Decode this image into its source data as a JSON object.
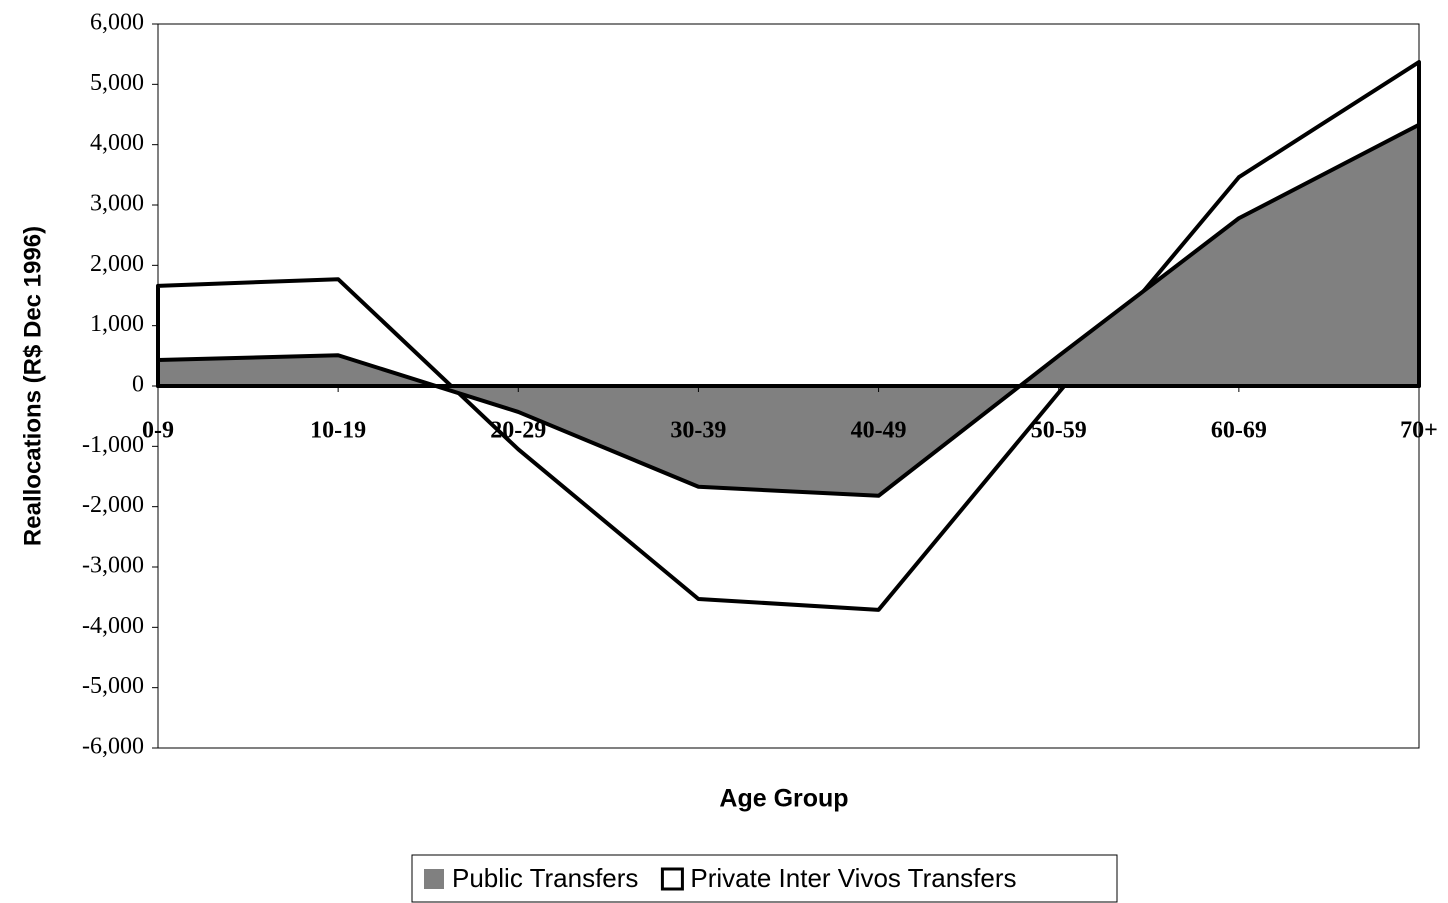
{
  "chart_data": {
    "type": "area",
    "x_label": "Age Group",
    "y_label": "Reallocations (R$ Dec 1996)",
    "categories": [
      "0-9",
      "10-19",
      "20-29",
      "30-39",
      "40-49",
      "50-59",
      "60-69",
      "70+"
    ],
    "series": [
      {
        "name": "Private Inter Vivos Transfers",
        "color": "#ffffff",
        "values": [
          1660,
          1770,
          -1050,
          -3530,
          -3710,
          -110,
          3460,
          5370
        ]
      },
      {
        "name": "Public Transfers",
        "color": "#808080",
        "values": [
          430,
          510,
          -430,
          -1670,
          -1820,
          500,
          2780,
          4330
        ]
      }
    ],
    "ylim": [
      -6000,
      6000
    ],
    "yticks": [
      {
        "value": -6000,
        "label": "-6,000"
      },
      {
        "value": -5000,
        "label": "-5,000"
      },
      {
        "value": -4000,
        "label": "-4,000"
      },
      {
        "value": -3000,
        "label": "-3,000"
      },
      {
        "value": -2000,
        "label": "-2,000"
      },
      {
        "value": -1000,
        "label": "-1,000"
      },
      0,
      {
        "value": 1000,
        "label": "1,000"
      },
      {
        "value": 2000,
        "label": "2,000"
      },
      {
        "value": 3000,
        "label": "3,000"
      },
      {
        "value": 4000,
        "label": "4,000"
      },
      {
        "value": 5000,
        "label": "5,000"
      },
      {
        "value": 6000,
        "label": "6,000"
      }
    ],
    "grid": false
  }
}
